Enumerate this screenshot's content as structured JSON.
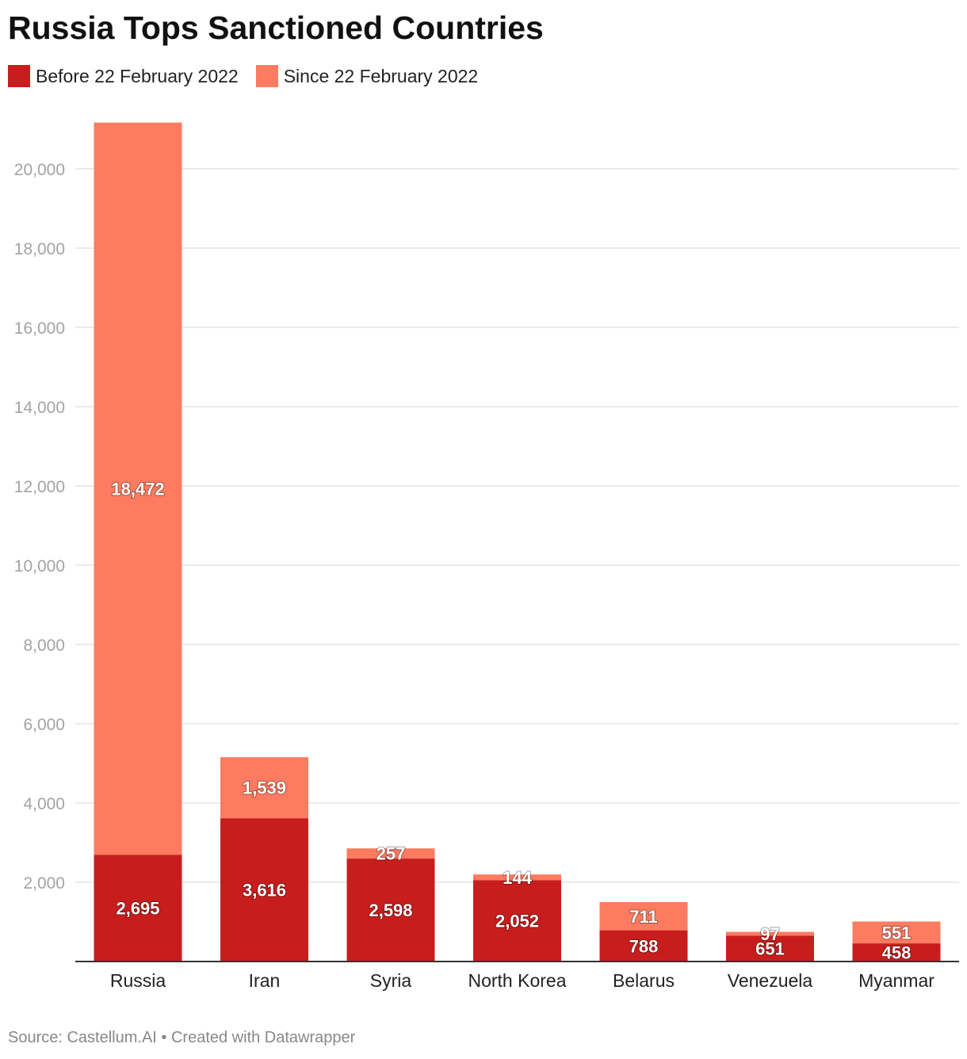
{
  "title": "Russia Tops Sanctioned Countries",
  "footer": "Source: Castellum.AI • Created with Datawrapper",
  "colors": {
    "before": "#c71e1d",
    "since": "#fc7b61",
    "grid": "#e3e3e3",
    "axis": "#333333"
  },
  "legend": [
    {
      "label": "Before 22 February 2022",
      "color": "#c71e1d"
    },
    {
      "label": "Since 22 February 2022",
      "color": "#fc7b61"
    }
  ],
  "chart_data": {
    "type": "bar",
    "stacked": true,
    "title": "Russia Tops Sanctioned Countries",
    "categories": [
      "Russia",
      "Iran",
      "Syria",
      "North Korea",
      "Belarus",
      "Venezuela",
      "Myanmar"
    ],
    "series": [
      {
        "name": "Before 22 February 2022",
        "color": "#c71e1d",
        "values": [
          2695,
          3616,
          2598,
          2052,
          788,
          651,
          458
        ]
      },
      {
        "name": "Since 22 February 2022",
        "color": "#fc7b61",
        "values": [
          18472,
          1539,
          257,
          144,
          711,
          97,
          551
        ]
      }
    ],
    "yticks": [
      2000,
      4000,
      6000,
      8000,
      10000,
      12000,
      14000,
      16000,
      18000,
      20000
    ],
    "ylim": [
      0,
      21167
    ],
    "grid": true,
    "legend_position": "top-left"
  }
}
